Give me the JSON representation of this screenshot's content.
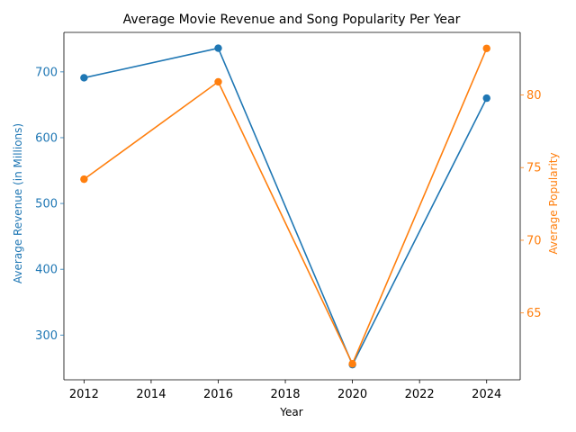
{
  "chart_data": {
    "type": "line",
    "title": "Average Movie Revenue and Song Popularity Per Year",
    "xlabel": "Year",
    "ylabel_left": "Average Revenue (in Millions)",
    "ylabel_right": "Average Popularity",
    "x": [
      2012,
      2016,
      2020,
      2024
    ],
    "x_ticks": [
      "2012",
      "2014",
      "2016",
      "2018",
      "2020",
      "2022",
      "2024"
    ],
    "xlim": [
      2011.4,
      2025.0
    ],
    "series": [
      {
        "axis": "left",
        "color": "#1f77b4",
        "marker": "circle",
        "values": [
          691,
          736,
          255,
          660
        ]
      },
      {
        "axis": "right",
        "color": "#ff7f0e",
        "marker": "circle",
        "values": [
          74.2,
          80.9,
          61.5,
          83.2
        ]
      }
    ],
    "y_left": {
      "ticks": [
        "300",
        "400",
        "500",
        "600",
        "700"
      ],
      "ylim": [
        232,
        760
      ],
      "color": "#1f77b4"
    },
    "y_right": {
      "ticks": [
        "65",
        "70",
        "75",
        "80"
      ],
      "ylim": [
        60.4,
        84.3
      ],
      "color": "#ff7f0e"
    },
    "grid": false,
    "legend": "none"
  }
}
